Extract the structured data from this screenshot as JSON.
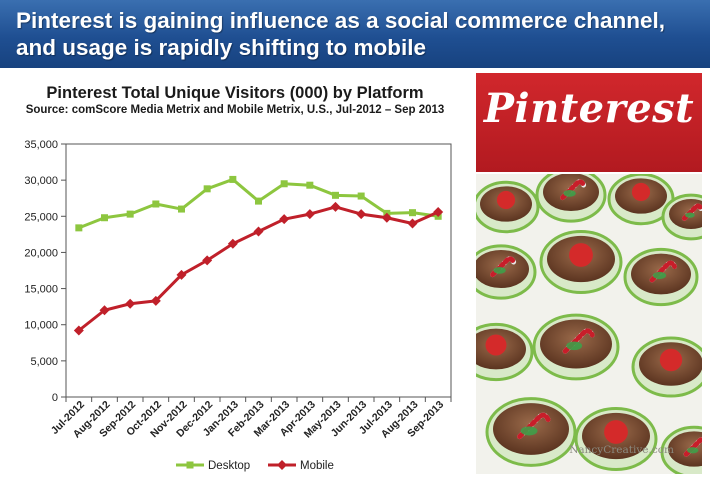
{
  "banner": {
    "title": "Pinterest is gaining influence as a social commerce channel, and usage is rapidly shifting to mobile"
  },
  "logo": {
    "text": "Pinterest"
  },
  "photo": {
    "credit": "NancyCreative.com"
  },
  "colors": {
    "banner": "#1f4f92",
    "desktop": "#8dc63f",
    "mobile": "#c0202a",
    "logo_bg": "#c4232a"
  },
  "chart_data": {
    "type": "line",
    "title": "Pinterest Total Unique Visitors (000) by Platform",
    "subtitle": "Source: comScore Media Metrix and Mobile Metrix, U.S.,  Jul-2012 – Sep 2013",
    "categories": [
      "Jul-2012",
      "Aug-2012",
      "Sep-2012",
      "Oct-2012",
      "Nov-2012",
      "Dec-2012",
      "Jan-2013",
      "Feb-2013",
      "Mar-2013",
      "Apr-2013",
      "May-2013",
      "Jun-2013",
      "Jul-2013",
      "Aug-2013",
      "Sep-2013"
    ],
    "yticks": [
      "0",
      "5,000",
      "10,000",
      "15,000",
      "20,000",
      "25,000",
      "30,000",
      "35,000"
    ],
    "ylim": [
      0,
      35000
    ],
    "grid": false,
    "legend_position": "bottom",
    "series": [
      {
        "name": "Desktop",
        "color": "#8dc63f",
        "values": [
          23400,
          24800,
          25300,
          26700,
          26000,
          28800,
          30100,
          27100,
          29500,
          29300,
          27900,
          27800,
          25400,
          25500,
          25000
        ]
      },
      {
        "name": "Mobile",
        "color": "#c0202a",
        "values": [
          9200,
          12000,
          12900,
          13300,
          16900,
          18900,
          21200,
          22900,
          24600,
          25300,
          26300,
          25300,
          24800,
          24000,
          25600
        ]
      }
    ]
  }
}
